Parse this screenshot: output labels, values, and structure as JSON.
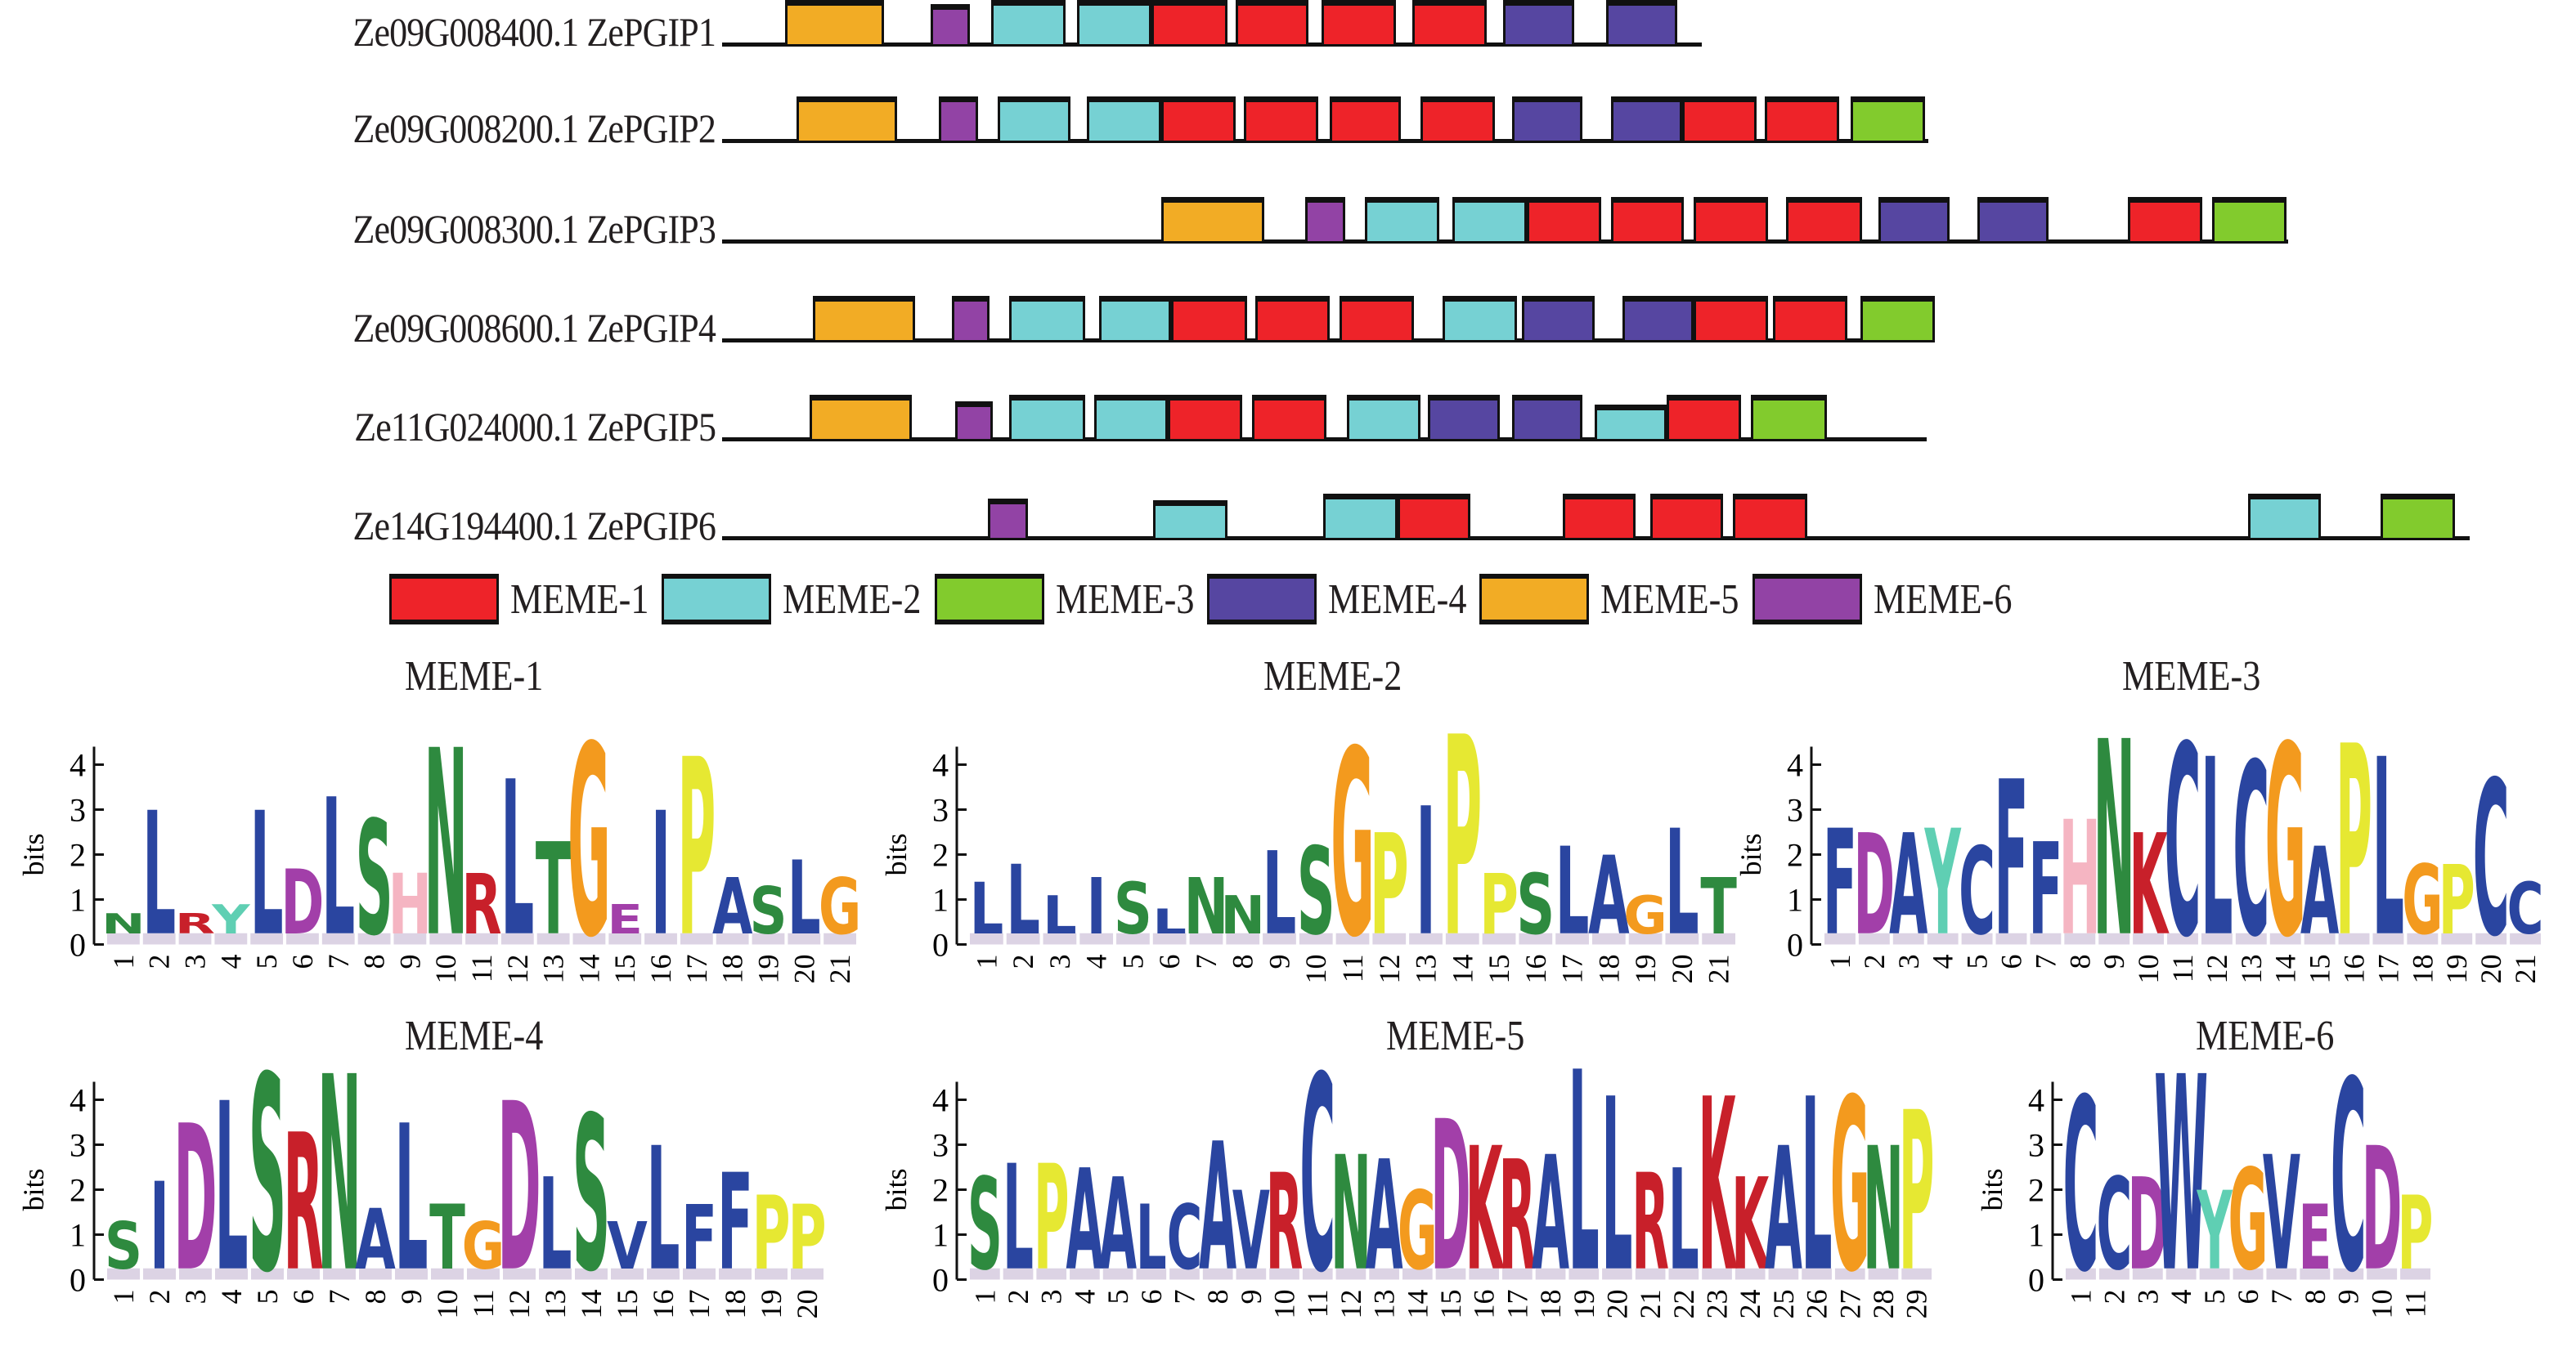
{
  "chart_data": {
    "type": "motif-diagram",
    "title": "",
    "motif_colors": {
      "MEME-1": "#ee2329",
      "MEME-2": "#76d1d3",
      "MEME-3": "#82cb2d",
      "MEME-4": "#5646a1",
      "MEME-5": "#f2ac25",
      "MEME-6": "#9243a5"
    },
    "legend": [
      {
        "label": "MEME-1",
        "motif": "MEME-1"
      },
      {
        "label": "MEME-2",
        "motif": "MEME-2"
      },
      {
        "label": "MEME-3",
        "motif": "MEME-3"
      },
      {
        "label": "MEME-4",
        "motif": "MEME-4"
      },
      {
        "label": "MEME-5",
        "motif": "MEME-5"
      },
      {
        "label": "MEME-6",
        "motif": "MEME-6"
      }
    ],
    "sequences": [
      {
        "label": "Ze09G008400.1 ZePGIP1",
        "length": 593,
        "motifs": [
          {
            "m": "MEME-5",
            "s": 38,
            "e": 98
          },
          {
            "m": "MEME-6",
            "s": 126,
            "e": 150,
            "h": 0.9
          },
          {
            "m": "MEME-2",
            "s": 163,
            "e": 208
          },
          {
            "m": "MEME-2",
            "s": 215,
            "e": 260
          },
          {
            "m": "MEME-1",
            "s": 260,
            "e": 306
          },
          {
            "m": "MEME-1",
            "s": 311,
            "e": 355
          },
          {
            "m": "MEME-1",
            "s": 363,
            "e": 408
          },
          {
            "m": "MEME-1",
            "s": 418,
            "e": 463
          },
          {
            "m": "MEME-4",
            "s": 473,
            "e": 516
          },
          {
            "m": "MEME-4",
            "s": 535,
            "e": 578
          }
        ]
      },
      {
        "label": "Ze09G008200.1 ZePGIP2",
        "length": 730,
        "motifs": [
          {
            "m": "MEME-5",
            "s": 45,
            "e": 106
          },
          {
            "m": "MEME-6",
            "s": 131,
            "e": 155
          },
          {
            "m": "MEME-2",
            "s": 167,
            "e": 211
          },
          {
            "m": "MEME-2",
            "s": 221,
            "e": 266
          },
          {
            "m": "MEME-1",
            "s": 266,
            "e": 311
          },
          {
            "m": "MEME-1",
            "s": 316,
            "e": 361
          },
          {
            "m": "MEME-1",
            "s": 368,
            "e": 411
          },
          {
            "m": "MEME-1",
            "s": 423,
            "e": 468
          },
          {
            "m": "MEME-4",
            "s": 478,
            "e": 521
          },
          {
            "m": "MEME-4",
            "s": 538,
            "e": 581
          },
          {
            "m": "MEME-1",
            "s": 581,
            "e": 626
          },
          {
            "m": "MEME-1",
            "s": 631,
            "e": 676
          },
          {
            "m": "MEME-3",
            "s": 683,
            "e": 728
          }
        ]
      },
      {
        "label": "Ze09G008300.1 ZePGIP3",
        "length": 948,
        "motifs": [
          {
            "m": "MEME-5",
            "s": 266,
            "e": 328
          },
          {
            "m": "MEME-6",
            "s": 353,
            "e": 377
          },
          {
            "m": "MEME-2",
            "s": 389,
            "e": 434
          },
          {
            "m": "MEME-2",
            "s": 442,
            "e": 487
          },
          {
            "m": "MEME-1",
            "s": 487,
            "e": 532
          },
          {
            "m": "MEME-1",
            "s": 538,
            "e": 582
          },
          {
            "m": "MEME-1",
            "s": 588,
            "e": 633
          },
          {
            "m": "MEME-1",
            "s": 644,
            "e": 690
          },
          {
            "m": "MEME-4",
            "s": 700,
            "e": 743
          },
          {
            "m": "MEME-4",
            "s": 760,
            "e": 803
          },
          {
            "m": "MEME-1",
            "s": 851,
            "e": 896
          },
          {
            "m": "MEME-3",
            "s": 902,
            "e": 947
          }
        ]
      },
      {
        "label": "Ze09G008600.1 ZePGIP4",
        "length": 734,
        "motifs": [
          {
            "m": "MEME-5",
            "s": 55,
            "e": 117
          },
          {
            "m": "MEME-6",
            "s": 139,
            "e": 162
          },
          {
            "m": "MEME-2",
            "s": 174,
            "e": 220
          },
          {
            "m": "MEME-2",
            "s": 228,
            "e": 272
          },
          {
            "m": "MEME-1",
            "s": 272,
            "e": 318
          },
          {
            "m": "MEME-1",
            "s": 323,
            "e": 368
          },
          {
            "m": "MEME-1",
            "s": 374,
            "e": 419
          },
          {
            "m": "MEME-2",
            "s": 436,
            "e": 481
          },
          {
            "m": "MEME-4",
            "s": 484,
            "e": 528
          },
          {
            "m": "MEME-4",
            "s": 545,
            "e": 588
          },
          {
            "m": "MEME-1",
            "s": 588,
            "e": 633
          },
          {
            "m": "MEME-1",
            "s": 636,
            "e": 681
          },
          {
            "m": "MEME-3",
            "s": 689,
            "e": 734
          }
        ]
      },
      {
        "label": "Ze11G024000.1 ZePGIP5",
        "length": 729,
        "motifs": [
          {
            "m": "MEME-5",
            "s": 53,
            "e": 115
          },
          {
            "m": "MEME-6",
            "s": 141,
            "e": 164,
            "h": 0.85
          },
          {
            "m": "MEME-2",
            "s": 174,
            "e": 220
          },
          {
            "m": "MEME-2",
            "s": 225,
            "e": 270
          },
          {
            "m": "MEME-1",
            "s": 270,
            "e": 315
          },
          {
            "m": "MEME-1",
            "s": 321,
            "e": 366
          },
          {
            "m": "MEME-2",
            "s": 378,
            "e": 423
          },
          {
            "m": "MEME-4",
            "s": 427,
            "e": 471
          },
          {
            "m": "MEME-4",
            "s": 478,
            "e": 521
          },
          {
            "m": "MEME-2",
            "s": 528,
            "e": 572,
            "h": 0.78
          },
          {
            "m": "MEME-1",
            "s": 572,
            "e": 617
          },
          {
            "m": "MEME-3",
            "s": 623,
            "e": 669
          }
        ]
      },
      {
        "label": "Ze14G194400.1 ZePGIP6",
        "length": 1058,
        "motifs": [
          {
            "m": "MEME-6",
            "s": 161,
            "e": 185,
            "h": 0.88
          },
          {
            "m": "MEME-2",
            "s": 261,
            "e": 306,
            "h": 0.86
          },
          {
            "m": "MEME-2",
            "s": 364,
            "e": 409
          },
          {
            "m": "MEME-1",
            "s": 409,
            "e": 453
          },
          {
            "m": "MEME-1",
            "s": 509,
            "e": 553
          },
          {
            "m": "MEME-1",
            "s": 562,
            "e": 606
          },
          {
            "m": "MEME-1",
            "s": 612,
            "e": 657
          },
          {
            "m": "MEME-2",
            "s": 924,
            "e": 968
          },
          {
            "m": "MEME-3",
            "s": 1004,
            "e": 1049
          }
        ]
      }
    ],
    "logos": [
      {
        "title": "MEME-1",
        "ylabel": "bits",
        "ylim": [
          0,
          4
        ],
        "yticks": [
          0,
          1,
          2,
          3,
          4
        ],
        "positions": [
          "1",
          "2",
          "3",
          "4",
          "5",
          "6",
          "7",
          "8",
          "9",
          "10",
          "11",
          "12",
          "13",
          "14",
          "15",
          "16",
          "17",
          "18",
          "19",
          "20",
          "21"
        ],
        "consensus": [
          "N",
          "L",
          "R",
          "Y",
          "L",
          "D",
          "L",
          "S",
          "H",
          "N",
          "R",
          "L",
          "T",
          "G",
          "E",
          "I",
          "P",
          "A",
          "S",
          "L",
          "G"
        ],
        "heights": [
          0.7,
          3.0,
          0.7,
          0.9,
          3.0,
          1.7,
          3.3,
          2.8,
          1.6,
          4.4,
          1.6,
          3.7,
          2.3,
          4.5,
          0.9,
          3.0,
          4.2,
          1.5,
          1.3,
          1.9,
          1.5
        ]
      },
      {
        "title": "MEME-2",
        "ylabel": "bits",
        "ylim": [
          0,
          4
        ],
        "yticks": [
          0,
          1,
          2,
          3,
          4
        ],
        "positions": [
          "1",
          "2",
          "3",
          "4",
          "5",
          "6",
          "7",
          "8",
          "9",
          "10",
          "11",
          "12",
          "13",
          "14",
          "15",
          "16",
          "17",
          "18",
          "19",
          "20",
          "21"
        ],
        "consensus": [
          "L",
          "L",
          "L",
          "I",
          "S",
          "L",
          "N",
          "N",
          "L",
          "S",
          "G",
          "P",
          "I",
          "P",
          "P",
          "S",
          "L",
          "A",
          "G",
          "L",
          "T"
        ],
        "heights": [
          1.4,
          1.8,
          1.1,
          1.5,
          1.4,
          0.8,
          1.5,
          1.1,
          2.1,
          2.2,
          4.4,
          2.5,
          3.1,
          4.7,
          1.6,
          1.6,
          2.2,
          2.0,
          1.1,
          2.6,
          1.5
        ]
      },
      {
        "title": "MEME-3",
        "ylabel": "bits",
        "ylim": [
          0,
          4
        ],
        "yticks": [
          0,
          1,
          2,
          3,
          4
        ],
        "positions": [
          "1",
          "2",
          "3",
          "4",
          "5",
          "6",
          "7",
          "8",
          "9",
          "10",
          "11",
          "12",
          "13",
          "14",
          "15",
          "16",
          "17",
          "18",
          "19",
          "20",
          "21"
        ],
        "consensus": [
          "F",
          "D",
          "A",
          "Y",
          "C",
          "F",
          "F",
          "H",
          "N",
          "K",
          "C",
          "L",
          "C",
          "G",
          "A",
          "P",
          "L",
          "G",
          "P",
          "C",
          "C"
        ],
        "heights": [
          2.6,
          2.5,
          2.5,
          2.6,
          2.2,
          3.7,
          2.3,
          2.8,
          4.6,
          2.5,
          4.5,
          4.2,
          4.1,
          4.5,
          2.2,
          4.5,
          4.2,
          1.8,
          1.8,
          3.7,
          1.4
        ]
      },
      {
        "title": "MEME-4",
        "ylabel": "bits",
        "ylim": [
          0,
          4
        ],
        "yticks": [
          0,
          1,
          2,
          3,
          4
        ],
        "positions": [
          "1",
          "2",
          "3",
          "4",
          "5",
          "6",
          "7",
          "8",
          "9",
          "10",
          "11",
          "12",
          "13",
          "14",
          "15",
          "16",
          "17",
          "18",
          "19",
          "20"
        ],
        "consensus": [
          "S",
          "I",
          "D",
          "L",
          "S",
          "R",
          "N",
          "A",
          "L",
          "T",
          "G",
          "D",
          "L",
          "S",
          "V",
          "L",
          "F",
          "F",
          "P",
          "P"
        ],
        "heights": [
          1.3,
          2.2,
          3.5,
          4.0,
          4.6,
          3.3,
          4.6,
          1.6,
          3.5,
          1.7,
          1.3,
          4.0,
          2.3,
          3.7,
          1.3,
          3.0,
          1.7,
          2.4,
          1.9,
          1.7
        ]
      },
      {
        "title": "MEME-5",
        "ylabel": "bits",
        "ylim": [
          0,
          4
        ],
        "yticks": [
          0,
          1,
          2,
          3,
          4
        ],
        "positions": [
          "1",
          "2",
          "3",
          "4",
          "5",
          "6",
          "7",
          "8",
          "9",
          "10",
          "11",
          "12",
          "13",
          "14",
          "15",
          "16",
          "17",
          "18",
          "19",
          "20",
          "21",
          "22",
          "23",
          "24",
          "25",
          "26",
          "27",
          "28",
          "29"
        ],
        "consensus": [
          "S",
          "L",
          "P",
          "A",
          "A",
          "L",
          "C",
          "A",
          "V",
          "R",
          "C",
          "N",
          "A",
          "G",
          "D",
          "K",
          "R",
          "A",
          "L",
          "L",
          "R",
          "L",
          "K",
          "K",
          "A",
          "L",
          "G",
          "N",
          "P"
        ],
        "heights": [
          2.3,
          2.6,
          2.6,
          2.5,
          2.3,
          1.7,
          1.7,
          3.1,
          2.0,
          2.4,
          4.6,
          2.8,
          2.7,
          2.0,
          3.6,
          3.0,
          2.7,
          2.8,
          4.7,
          4.1,
          2.4,
          2.5,
          4.1,
          2.3,
          3.0,
          4.1,
          4.1,
          3.0,
          3.8
        ]
      },
      {
        "title": "MEME-6",
        "ylabel": "bits",
        "ylim": [
          0,
          4
        ],
        "yticks": [
          0,
          1,
          2,
          3,
          4
        ],
        "positions": [
          "1",
          "2",
          "3",
          "4",
          "5",
          "6",
          "7",
          "8",
          "9",
          "10",
          "11"
        ],
        "consensus": [
          "C",
          "C",
          "D",
          "W",
          "Y",
          "G",
          "V",
          "E",
          "C",
          "D",
          "P"
        ],
        "heights": [
          4.1,
          2.3,
          2.3,
          4.6,
          2.0,
          2.5,
          2.8,
          1.7,
          4.5,
          3.0,
          1.9
        ]
      }
    ]
  },
  "aa_colors": {
    "A": "#2a45a0",
    "C": "#2a45a0",
    "F": "#2a45a0",
    "I": "#2a45a0",
    "L": "#2a45a0",
    "M": "#2a45a0",
    "V": "#2a45a0",
    "W": "#2a45a0",
    "N": "#2e8a3f",
    "Q": "#2e8a3f",
    "S": "#2e8a3f",
    "T": "#2e8a3f",
    "D": "#a23fa9",
    "E": "#a23fa9",
    "K": "#c8202a",
    "R": "#c8202a",
    "G": "#f39a1e",
    "P": "#e6e832",
    "H": "#f5b5c2",
    "Y": "#5fcfb3"
  }
}
